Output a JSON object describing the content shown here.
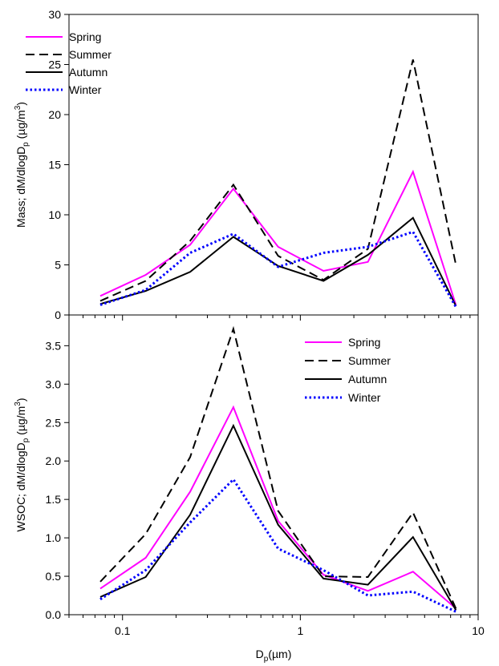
{
  "chart_data": [
    {
      "type": "line",
      "ylabel": "Mass; dM/dlogD",
      "ylabel_subscript": "p",
      "ylabel_units": " (µg/m",
      "ylabel_sup": "3",
      "ylabel_close": ")",
      "x_scale": "log",
      "xlim": [
        0.05,
        10
      ],
      "ylim": [
        0,
        30
      ],
      "yticks": [
        0,
        5,
        10,
        15,
        20,
        25,
        30
      ],
      "ytick_labels": [
        "0",
        "5",
        "10",
        "15",
        "20",
        "25",
        "30"
      ],
      "legend_position": "top-left",
      "x": [
        0.075,
        0.135,
        0.24,
        0.42,
        0.75,
        1.35,
        2.4,
        4.3,
        7.5
      ],
      "series": [
        {
          "name": "Spring",
          "color": "#ff00ff",
          "style": "solid",
          "values": [
            1.9,
            4.0,
            7.0,
            12.6,
            6.8,
            4.4,
            5.3,
            14.3,
            1.0
          ]
        },
        {
          "name": "Summer",
          "color": "#000000",
          "style": "dashed",
          "values": [
            1.4,
            3.4,
            7.4,
            13.0,
            5.9,
            3.5,
            6.6,
            25.5,
            5.0
          ]
        },
        {
          "name": "Autumn",
          "color": "#000000",
          "style": "solid",
          "values": [
            1.1,
            2.4,
            4.3,
            7.8,
            4.9,
            3.4,
            6.0,
            9.7,
            0.9
          ]
        },
        {
          "name": "Winter",
          "color": "#0000ff",
          "style": "dotted",
          "values": [
            1.0,
            2.5,
            6.2,
            8.1,
            4.8,
            6.2,
            6.8,
            8.3,
            0.8
          ]
        }
      ]
    },
    {
      "type": "line",
      "ylabel": "WSOC; dM/dlogD",
      "ylabel_subscript": "p",
      "ylabel_units": " (µg/m",
      "ylabel_sup": "3",
      "ylabel_close": ")",
      "xlabel": "D",
      "xlabel_subscript": "p",
      "xlabel_units": "(µm)",
      "x_scale": "log",
      "xlim": [
        0.05,
        10
      ],
      "xticks": [
        0.1,
        1,
        10
      ],
      "xtick_labels": [
        "0.1",
        "1",
        "10"
      ],
      "ylim": [
        0,
        3.9
      ],
      "yticks": [
        0,
        0.5,
        1.0,
        1.5,
        2.0,
        2.5,
        3.0,
        3.5
      ],
      "ytick_labels": [
        "0.0",
        "0.5",
        "1.0",
        "1.5",
        "2.0",
        "2.5",
        "3.0",
        "3.5"
      ],
      "legend_position": "top-right",
      "x": [
        0.075,
        0.135,
        0.24,
        0.42,
        0.75,
        1.35,
        2.4,
        4.3,
        7.5
      ],
      "series": [
        {
          "name": "Spring",
          "color": "#ff00ff",
          "style": "solid",
          "values": [
            0.34,
            0.74,
            1.6,
            2.7,
            1.22,
            0.52,
            0.31,
            0.56,
            0.08
          ]
        },
        {
          "name": "Summer",
          "color": "#000000",
          "style": "dashed",
          "values": [
            0.43,
            1.05,
            2.05,
            3.72,
            1.35,
            0.5,
            0.49,
            1.33,
            0.08
          ]
        },
        {
          "name": "Autumn",
          "color": "#000000",
          "style": "solid",
          "label": " Autumn",
          "values": [
            0.23,
            0.49,
            1.3,
            2.46,
            1.17,
            0.47,
            0.39,
            1.01,
            0.06
          ]
        },
        {
          "name": "Winter",
          "color": "#0000ff",
          "style": "dotted",
          "values": [
            0.2,
            0.58,
            1.2,
            1.76,
            0.86,
            0.58,
            0.25,
            0.3,
            0.04
          ]
        }
      ]
    }
  ]
}
